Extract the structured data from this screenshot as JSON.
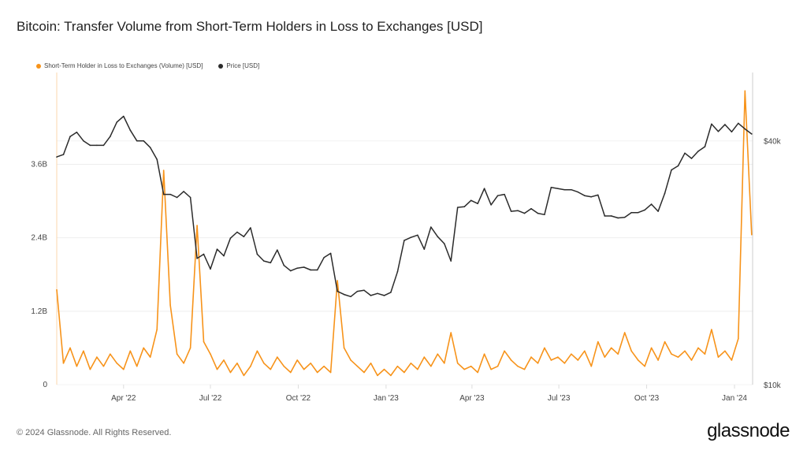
{
  "chart_data": {
    "type": "line",
    "title": "Bitcoin: Transfer Volume from Short-Term Holders in Loss to Exchanges [USD]",
    "legend_position": "top-left",
    "grid": true,
    "x_ticks": [
      "Apr '22",
      "Jul '22",
      "Oct '22",
      "Jan '23",
      "Apr '23",
      "Jul '23",
      "Oct '23",
      "Jan '24"
    ],
    "x_tick_dates": [
      "2022-04-01",
      "2022-07-01",
      "2022-10-01",
      "2023-01-01",
      "2023-04-01",
      "2023-07-01",
      "2023-10-01",
      "2024-01-01"
    ],
    "xlim": [
      "2022-01-21",
      "2024-01-20"
    ],
    "y_left": {
      "ticks": [
        "0",
        "1.2B",
        "2.4B",
        "3.6B"
      ],
      "tick_values": [
        0,
        1.2,
        2.4,
        3.6
      ],
      "ylim": [
        0,
        5.1
      ],
      "unit": "B USD"
    },
    "y_right": {
      "ticks": [
        "$10k",
        "$40k"
      ],
      "tick_values": [
        10000,
        40000
      ],
      "scale": "log",
      "ylim": [
        10000,
        59000
      ]
    },
    "dates": [
      "2022-01-21",
      "2022-01-28",
      "2022-02-04",
      "2022-02-11",
      "2022-02-18",
      "2022-02-25",
      "2022-03-04",
      "2022-03-11",
      "2022-03-18",
      "2022-03-25",
      "2022-04-01",
      "2022-04-08",
      "2022-04-15",
      "2022-04-22",
      "2022-04-29",
      "2022-05-06",
      "2022-05-13",
      "2022-05-20",
      "2022-05-27",
      "2022-06-03",
      "2022-06-10",
      "2022-06-17",
      "2022-06-24",
      "2022-07-01",
      "2022-07-08",
      "2022-07-15",
      "2022-07-22",
      "2022-07-29",
      "2022-08-05",
      "2022-08-12",
      "2022-08-19",
      "2022-08-26",
      "2022-09-02",
      "2022-09-09",
      "2022-09-16",
      "2022-09-23",
      "2022-09-30",
      "2022-10-07",
      "2022-10-14",
      "2022-10-21",
      "2022-10-28",
      "2022-11-04",
      "2022-11-11",
      "2022-11-18",
      "2022-11-25",
      "2022-12-02",
      "2022-12-09",
      "2022-12-16",
      "2022-12-23",
      "2022-12-30",
      "2023-01-06",
      "2023-01-13",
      "2023-01-20",
      "2023-01-27",
      "2023-02-03",
      "2023-02-10",
      "2023-02-17",
      "2023-02-24",
      "2023-03-03",
      "2023-03-10",
      "2023-03-17",
      "2023-03-24",
      "2023-03-31",
      "2023-04-07",
      "2023-04-14",
      "2023-04-21",
      "2023-04-28",
      "2023-05-05",
      "2023-05-12",
      "2023-05-19",
      "2023-05-26",
      "2023-06-02",
      "2023-06-09",
      "2023-06-16",
      "2023-06-23",
      "2023-06-30",
      "2023-07-07",
      "2023-07-14",
      "2023-07-21",
      "2023-07-28",
      "2023-08-04",
      "2023-08-11",
      "2023-08-18",
      "2023-08-25",
      "2023-09-01",
      "2023-09-08",
      "2023-09-15",
      "2023-09-22",
      "2023-09-29",
      "2023-10-06",
      "2023-10-13",
      "2023-10-20",
      "2023-10-27",
      "2023-11-03",
      "2023-11-10",
      "2023-11-17",
      "2023-11-24",
      "2023-12-01",
      "2023-12-08",
      "2023-12-15",
      "2023-12-22",
      "2023-12-29",
      "2024-01-05",
      "2024-01-12",
      "2024-01-19"
    ],
    "series": [
      {
        "name": "Short-Term Holder in Loss to Exchanges (Volume) [USD]",
        "axis": "left",
        "color": "#f7931a",
        "values": [
          1.55,
          0.35,
          0.6,
          0.3,
          0.55,
          0.25,
          0.45,
          0.3,
          0.5,
          0.35,
          0.25,
          0.55,
          0.3,
          0.6,
          0.45,
          0.9,
          3.5,
          1.3,
          0.5,
          0.35,
          0.6,
          2.6,
          0.7,
          0.5,
          0.25,
          0.4,
          0.2,
          0.35,
          0.15,
          0.3,
          0.55,
          0.35,
          0.25,
          0.45,
          0.3,
          0.2,
          0.4,
          0.25,
          0.35,
          0.2,
          0.3,
          0.2,
          1.7,
          0.6,
          0.4,
          0.3,
          0.2,
          0.35,
          0.15,
          0.25,
          0.15,
          0.3,
          0.2,
          0.35,
          0.25,
          0.45,
          0.3,
          0.5,
          0.35,
          0.85,
          0.35,
          0.25,
          0.3,
          0.2,
          0.5,
          0.25,
          0.3,
          0.55,
          0.4,
          0.3,
          0.25,
          0.45,
          0.35,
          0.6,
          0.4,
          0.45,
          0.35,
          0.5,
          0.4,
          0.55,
          0.3,
          0.7,
          0.45,
          0.6,
          0.5,
          0.85,
          0.55,
          0.4,
          0.3,
          0.6,
          0.4,
          0.7,
          0.5,
          0.45,
          0.55,
          0.4,
          0.6,
          0.5,
          0.9,
          0.45,
          0.55,
          0.4,
          0.75,
          4.8,
          2.45
        ]
      },
      {
        "name": "Price [USD]",
        "axis": "right",
        "color": "#2b2b2b",
        "values": [
          36500,
          37000,
          41000,
          42000,
          40000,
          39000,
          39000,
          39000,
          41000,
          44500,
          46000,
          42500,
          40000,
          40000,
          38500,
          36000,
          29500,
          29500,
          29000,
          30000,
          29000,
          20500,
          21000,
          19300,
          21600,
          20800,
          23000,
          23800,
          23200,
          24400,
          21000,
          20200,
          20000,
          21500,
          19700,
          19100,
          19400,
          19500,
          19200,
          19200,
          20600,
          21100,
          17000,
          16700,
          16500,
          17000,
          17100,
          16600,
          16800,
          16600,
          16900,
          19000,
          22700,
          23100,
          23400,
          21600,
          24500,
          23200,
          22300,
          20200,
          27400,
          27500,
          28500,
          28000,
          30500,
          27800,
          29300,
          29500,
          26800,
          26900,
          26500,
          27200,
          26500,
          26300,
          30700,
          30500,
          30300,
          30300,
          29900,
          29300,
          29100,
          29400,
          26100,
          26100,
          25800,
          25900,
          26600,
          26600,
          27000,
          27900,
          26800,
          29700,
          33900,
          34700,
          37300,
          36200,
          37700,
          38700,
          44000,
          42200,
          43900,
          42100,
          44200,
          42800,
          41600
        ]
      }
    ]
  },
  "footer": {
    "copyright": "© 2024 Glassnode. All Rights Reserved.",
    "logo": "glassnode"
  }
}
